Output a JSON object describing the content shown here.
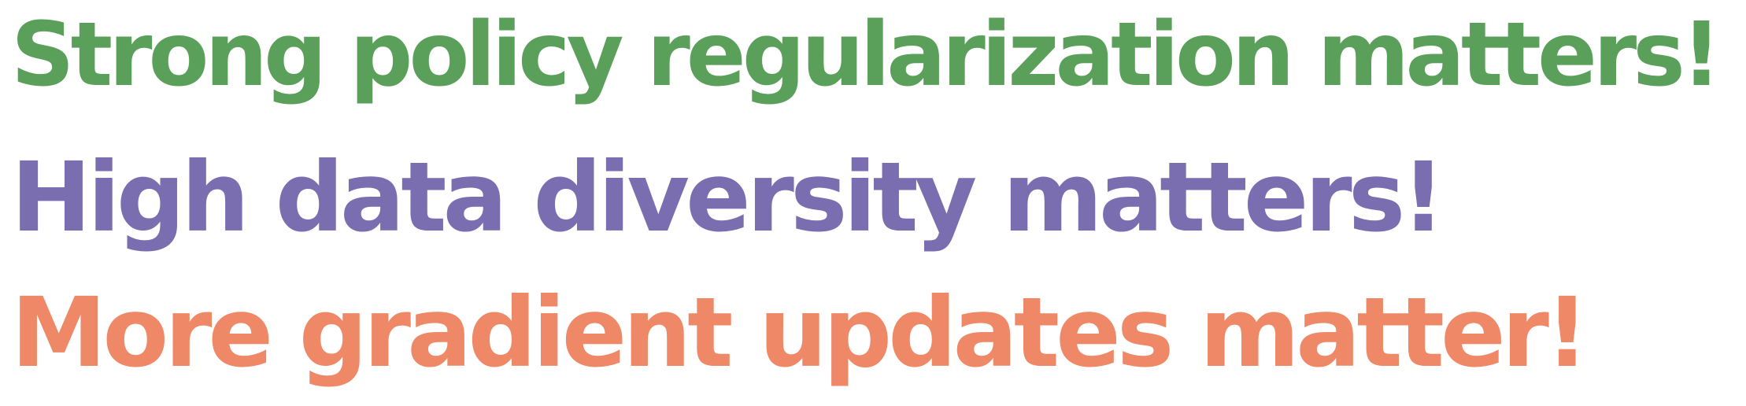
{
  "lines": [
    {
      "text": "Strong policy regularization matters!",
      "color": "#5aa05a"
    },
    {
      "text": "High data diversity matters!",
      "color": "#7a6eb0"
    },
    {
      "text": "More gradient updates matter!",
      "color": "#ee8866"
    }
  ]
}
